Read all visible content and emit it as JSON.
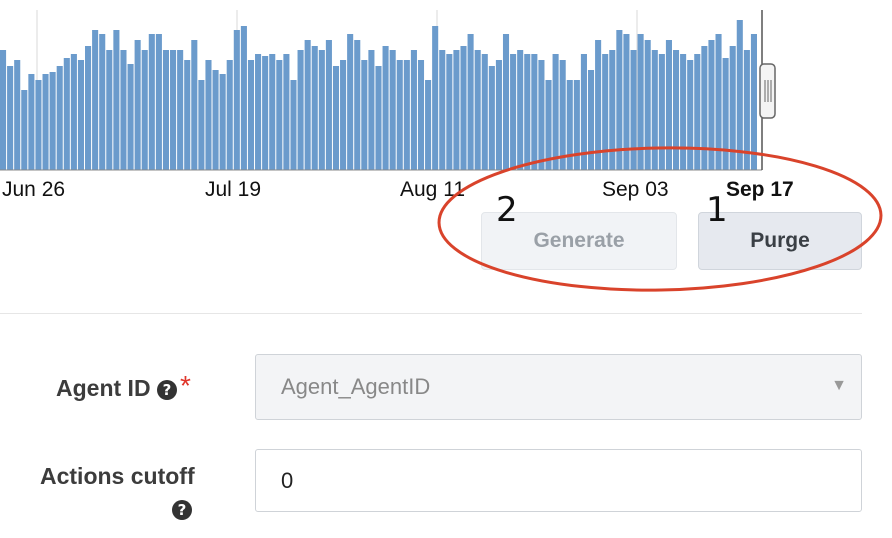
{
  "chart_data": {
    "type": "bar",
    "x_tick_labels": [
      "Jun 26",
      "Jul 19",
      "Aug 11",
      "Sep 03",
      "Sep 17"
    ],
    "highlighted_tick": "Sep 17",
    "values": [
      60,
      52,
      55,
      40,
      48,
      45,
      48,
      49,
      52,
      56,
      58,
      55,
      62,
      70,
      68,
      60,
      70,
      60,
      53,
      65,
      60,
      68,
      68,
      60,
      60,
      60,
      55,
      65,
      45,
      55,
      50,
      48,
      55,
      70,
      72,
      55,
      58,
      57,
      58,
      55,
      58,
      45,
      60,
      65,
      62,
      60,
      65,
      52,
      55,
      68,
      65,
      55,
      60,
      52,
      62,
      60,
      55,
      55,
      60,
      55,
      45,
      72,
      60,
      58,
      60,
      62,
      68,
      60,
      58,
      52,
      55,
      68,
      58,
      60,
      58,
      58,
      55,
      45,
      58,
      55,
      45,
      45,
      58,
      50,
      65,
      58,
      60,
      70,
      68,
      60,
      68,
      65,
      60,
      58,
      65,
      60,
      58,
      55,
      58,
      62,
      65,
      68,
      56,
      62,
      75,
      60,
      68
    ],
    "ylim": [
      0,
      80
    ],
    "bar_color": "#6b9bcc",
    "grid": true
  },
  "buttons": {
    "generate": "Generate",
    "purge": "Purge"
  },
  "annotations": {
    "number_1": "1",
    "number_2": "2",
    "ellipse_color": "#d9432b"
  },
  "form": {
    "agent_id": {
      "label": "Agent ID",
      "help_icon": "question-circle-icon",
      "required_mark": "*",
      "value": "Agent_AgentID"
    },
    "actions_cutoff": {
      "label": "Actions cutoff",
      "help_icon": "question-circle-icon",
      "value": "0"
    }
  }
}
